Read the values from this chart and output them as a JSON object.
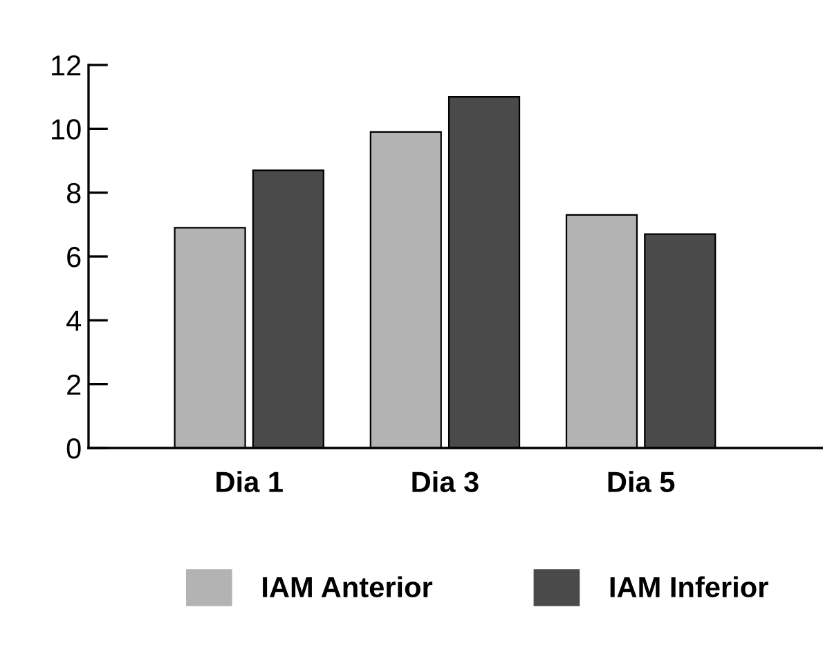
{
  "chart_data": {
    "type": "bar",
    "categories": [
      "Dia 1",
      "Dia 3",
      "Dia 5"
    ],
    "series": [
      {
        "name": "IAM Anterior",
        "color": "#b3b3b3",
        "values": [
          6.9,
          9.9,
          7.3
        ]
      },
      {
        "name": "IAM Inferior",
        "color": "#4a4a4a",
        "values": [
          8.7,
          11.0,
          6.7
        ]
      }
    ],
    "ylim": [
      0,
      12
    ],
    "yticks": [
      0,
      2,
      4,
      6,
      8,
      10,
      12
    ],
    "grid": false,
    "legend": "bottom"
  }
}
